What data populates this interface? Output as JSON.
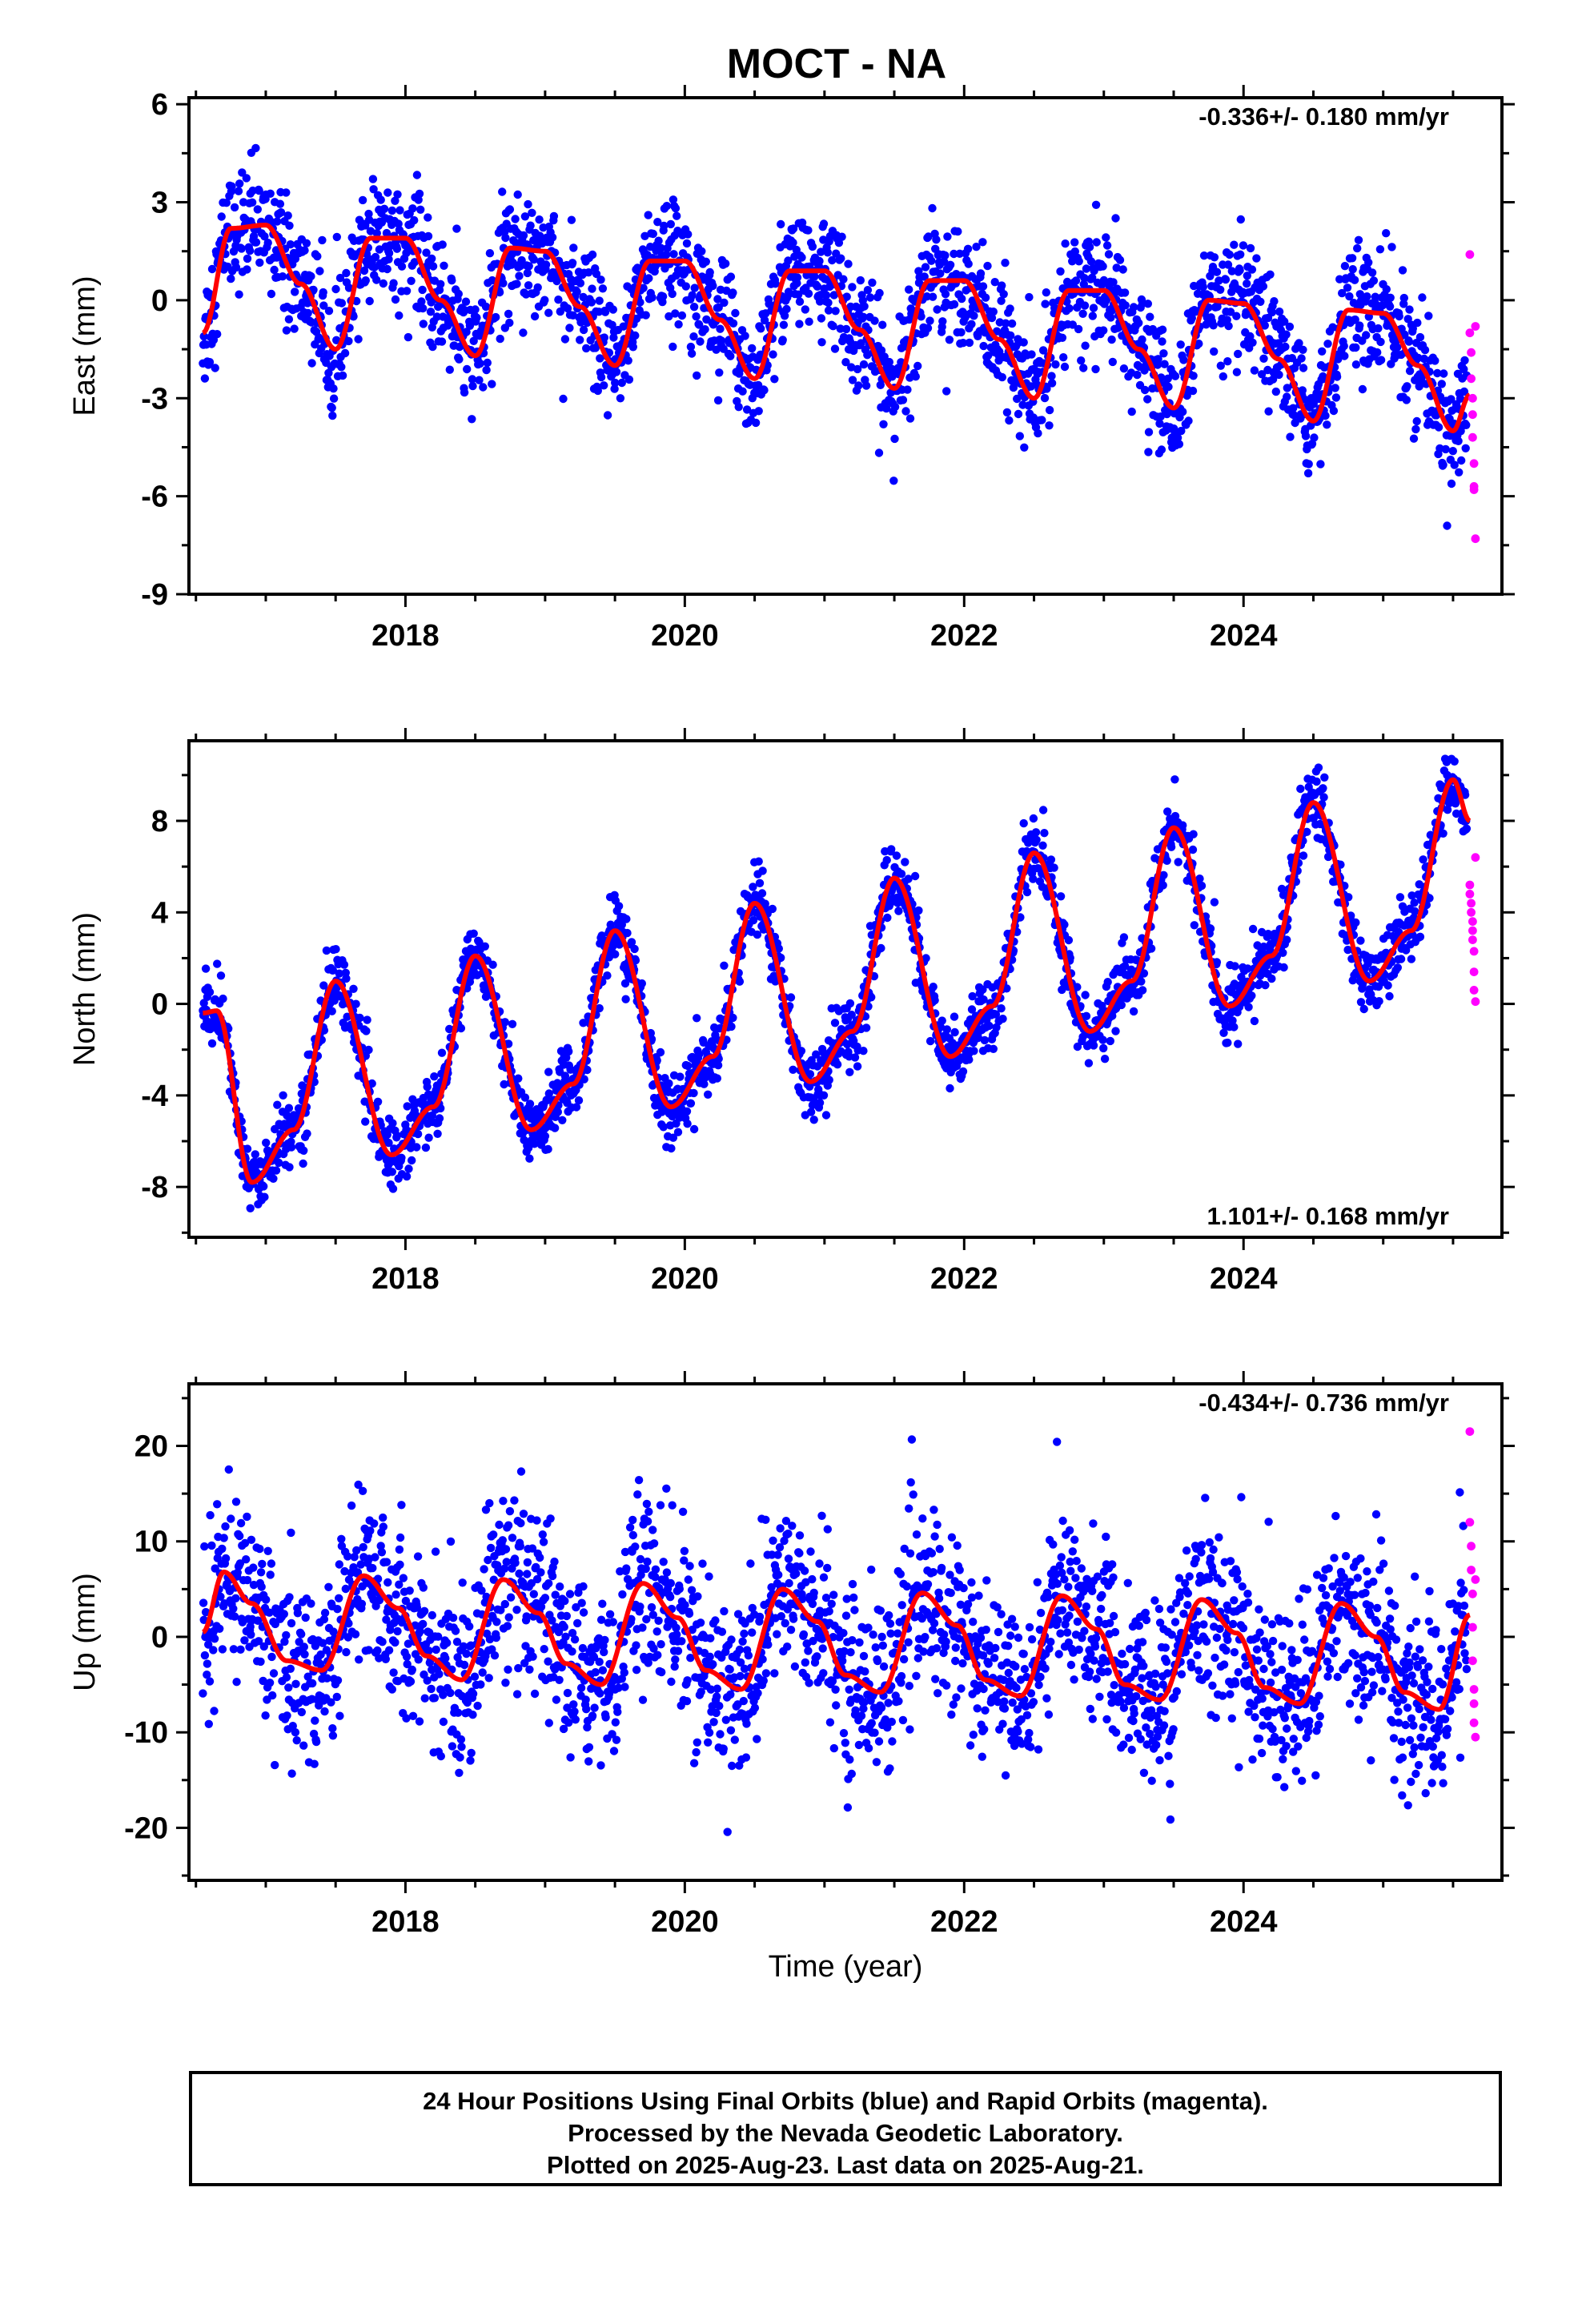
{
  "title": "MOCT - NA",
  "footer": {
    "line1": "24 Hour Positions Using Final Orbits (blue) and Rapid Orbits (magenta).",
    "line2": "Processed by the Nevada Geodetic Laboratory.",
    "line3": "Plotted on 2025-Aug-23. Last data on 2025-Aug-21."
  },
  "colors": {
    "final": "#0000ff",
    "rapid": "#ff00ff",
    "model": "#ff0000",
    "axes": "#000000"
  },
  "chart_data": [
    {
      "type": "scatter",
      "id": "east",
      "ylabel": "East (mm)",
      "xlabel": "",
      "rate_label": "-0.336+/- 0.180 mm/yr",
      "rate_position": "top-right",
      "xlim": [
        2016.45,
        2025.85
      ],
      "ylim": [
        -9,
        6.2
      ],
      "xticks": [
        2018,
        2020,
        2022,
        2024
      ],
      "xtick_labels": [
        "2018",
        "2020",
        "2022",
        "2024"
      ],
      "yticks": [
        -9,
        -6,
        -3,
        0,
        3,
        6
      ],
      "ytick_labels": [
        "-9",
        "-6",
        "-3",
        "0",
        "3",
        "6"
      ],
      "grid": false,
      "model": {
        "x": [
          2016.55,
          2016.75,
          2017.0,
          2017.25,
          2017.5,
          2017.75,
          2018.0,
          2018.25,
          2018.5,
          2018.75,
          2019.0,
          2019.25,
          2019.5,
          2019.75,
          2020.0,
          2020.25,
          2020.5,
          2020.75,
          2021.0,
          2021.25,
          2021.5,
          2021.75,
          2022.0,
          2022.25,
          2022.5,
          2022.75,
          2023.0,
          2023.25,
          2023.5,
          2023.75,
          2024.0,
          2024.25,
          2024.5,
          2024.75,
          2025.0,
          2025.25,
          2025.5,
          2025.62
        ],
        "y": [
          -1.0,
          2.2,
          2.3,
          0.5,
          -1.5,
          1.9,
          1.9,
          0.0,
          -1.7,
          1.6,
          1.5,
          -0.2,
          -2.0,
          1.2,
          1.2,
          -0.6,
          -2.4,
          0.9,
          0.9,
          -0.9,
          -2.7,
          0.6,
          0.6,
          -1.2,
          -3.0,
          0.3,
          0.3,
          -1.5,
          -3.3,
          0.0,
          -0.1,
          -1.8,
          -3.7,
          -0.3,
          -0.4,
          -2.0,
          -4.0,
          -2.9
        ]
      },
      "rapid": {
        "x": [
          2025.62,
          2025.62,
          2025.63,
          2025.63,
          2025.64,
          2025.64,
          2025.64,
          2025.65,
          2025.65,
          2025.65,
          2025.66,
          2025.66
        ],
        "y": [
          1.4,
          -1.0,
          -1.6,
          -2.4,
          -3.0,
          -3.5,
          -4.2,
          -5.0,
          -5.7,
          -5.8,
          -7.3,
          -0.8
        ]
      },
      "final_model": {
        "noise": 0.9,
        "sample_step_years": 0.0035,
        "x_range": [
          2016.55,
          2025.6
        ]
      }
    },
    {
      "type": "scatter",
      "id": "north",
      "ylabel": "North (mm)",
      "xlabel": "",
      "rate_label": "1.101+/- 0.168 mm/yr",
      "rate_position": "bottom-right",
      "xlim": [
        2016.45,
        2025.85
      ],
      "ylim": [
        -10.2,
        11.5
      ],
      "xticks": [
        2018,
        2020,
        2022,
        2024
      ],
      "xtick_labels": [
        "2018",
        "2020",
        "2022",
        "2024"
      ],
      "yticks": [
        -8,
        -4,
        0,
        4,
        8
      ],
      "ytick_labels": [
        "-8",
        "-4",
        "0",
        "4",
        "8"
      ],
      "grid": false,
      "model": {
        "x": [
          2016.55,
          2016.65,
          2016.9,
          2017.2,
          2017.5,
          2017.9,
          2018.2,
          2018.5,
          2018.9,
          2019.2,
          2019.5,
          2019.9,
          2020.2,
          2020.5,
          2020.9,
          2021.2,
          2021.5,
          2021.9,
          2022.2,
          2022.5,
          2022.9,
          2023.2,
          2023.5,
          2023.9,
          2024.2,
          2024.5,
          2024.9,
          2025.2,
          2025.5,
          2025.62
        ],
        "y": [
          -0.4,
          -0.3,
          -7.8,
          -5.5,
          1.0,
          -6.6,
          -4.5,
          2.1,
          -5.5,
          -3.5,
          3.2,
          -4.5,
          -2.3,
          4.4,
          -3.4,
          -1.2,
          5.5,
          -2.3,
          -0.1,
          6.6,
          -1.2,
          1.0,
          7.7,
          -0.1,
          2.1,
          8.8,
          1.0,
          3.2,
          9.8,
          8.0
        ]
      },
      "rapid": {
        "x": [
          2025.62,
          2025.62,
          2025.63,
          2025.63,
          2025.64,
          2025.64,
          2025.64,
          2025.65,
          2025.65,
          2025.65,
          2025.66,
          2025.66
        ],
        "y": [
          5.2,
          4.8,
          4.4,
          4.0,
          3.6,
          3.2,
          2.8,
          2.3,
          1.4,
          0.6,
          0.1,
          6.4
        ]
      },
      "final_model": {
        "noise": 0.75,
        "sample_step_years": 0.0035,
        "x_range": [
          2016.55,
          2025.6
        ]
      }
    },
    {
      "type": "scatter",
      "id": "up",
      "ylabel": "Up (mm)",
      "xlabel": "Time (year)",
      "rate_label": "-0.434+/- 0.736 mm/yr",
      "rate_position": "top-right",
      "xlim": [
        2016.45,
        2025.85
      ],
      "ylim": [
        -25.5,
        26.5
      ],
      "xticks": [
        2018,
        2020,
        2022,
        2024
      ],
      "xtick_labels": [
        "2018",
        "2020",
        "2022",
        "2024"
      ],
      "yticks": [
        -20,
        -10,
        0,
        10,
        20
      ],
      "ytick_labels": [
        "-20",
        "-10",
        "0",
        "10",
        "20"
      ],
      "grid": false,
      "model": {
        "x": [
          2016.55,
          2016.7,
          2016.9,
          2017.15,
          2017.4,
          2017.7,
          2017.95,
          2018.15,
          2018.4,
          2018.7,
          2018.95,
          2019.15,
          2019.4,
          2019.7,
          2019.95,
          2020.15,
          2020.4,
          2020.7,
          2020.95,
          2021.15,
          2021.4,
          2021.7,
          2021.95,
          2022.15,
          2022.4,
          2022.7,
          2022.95,
          2023.15,
          2023.4,
          2023.7,
          2023.95,
          2024.15,
          2024.4,
          2024.7,
          2024.95,
          2025.15,
          2025.4,
          2025.62
        ],
        "y": [
          0.5,
          6.8,
          3.5,
          -2.5,
          -3.5,
          6.4,
          3.0,
          -2.0,
          -4.5,
          6.0,
          2.5,
          -2.8,
          -5.0,
          5.6,
          2.0,
          -3.5,
          -5.5,
          5.0,
          1.6,
          -4.0,
          -5.8,
          4.6,
          1.2,
          -4.5,
          -6.2,
          4.3,
          0.8,
          -5.0,
          -6.6,
          3.9,
          0.4,
          -5.3,
          -7.0,
          3.5,
          0.0,
          -5.8,
          -7.6,
          2.3
        ]
      },
      "rapid": {
        "x": [
          2025.62,
          2025.62,
          2025.63,
          2025.63,
          2025.64,
          2025.64,
          2025.64,
          2025.65,
          2025.65,
          2025.65,
          2025.66,
          2025.66
        ],
        "y": [
          21.5,
          12.0,
          9.5,
          7.0,
          4.5,
          1.0,
          -2.5,
          -5.5,
          -7.0,
          -9.0,
          -10.5,
          6.0
        ]
      },
      "final_model": {
        "noise": 4.6,
        "sample_step_years": 0.0035,
        "x_range": [
          2016.55,
          2025.6
        ]
      }
    }
  ]
}
